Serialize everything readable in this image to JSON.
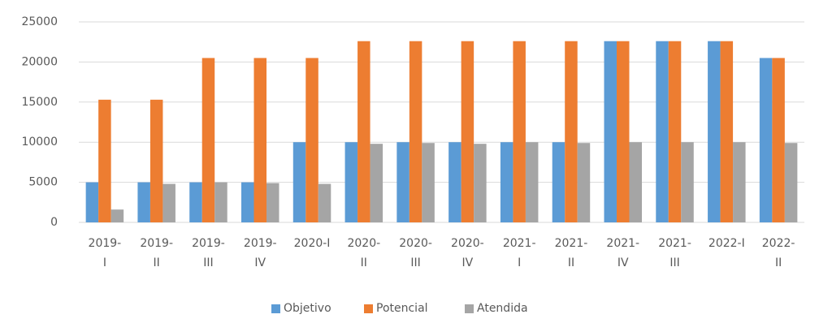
{
  "chart_data": {
    "type": "bar",
    "categories": [
      "2019-\nI",
      "2019-\nII",
      "2019-\nIII",
      "2019-\nIV",
      "2020-I",
      "2020-\nII",
      "2020-\nIII",
      "2020-\nIV",
      "2021-\nI",
      "2021-\nII",
      "2021-\nIV",
      "2021-\nIII",
      "2022-I",
      "2022-\nII"
    ],
    "series": [
      {
        "name": "Objetivo",
        "color": "#5b9bd5",
        "values": [
          5000,
          5000,
          5000,
          5000,
          10000,
          10000,
          10000,
          10000,
          10000,
          10000,
          22600,
          22600,
          22600,
          20500
        ]
      },
      {
        "name": "Potencial",
        "color": "#ed7d31",
        "values": [
          15300,
          15300,
          20500,
          20500,
          20500,
          22600,
          22600,
          22600,
          22600,
          22600,
          22600,
          22600,
          22600,
          20500
        ]
      },
      {
        "name": "Atendida",
        "color": "#a5a5a5",
        "values": [
          1600,
          4800,
          5000,
          4900,
          4800,
          9800,
          9900,
          9800,
          10000,
          9900,
          10000,
          10000,
          10000,
          9900
        ]
      }
    ],
    "ylim": [
      0,
      25000
    ],
    "yticks": [
      0,
      5000,
      10000,
      15000,
      20000,
      25000
    ],
    "grid": true,
    "legend": "bottom"
  }
}
